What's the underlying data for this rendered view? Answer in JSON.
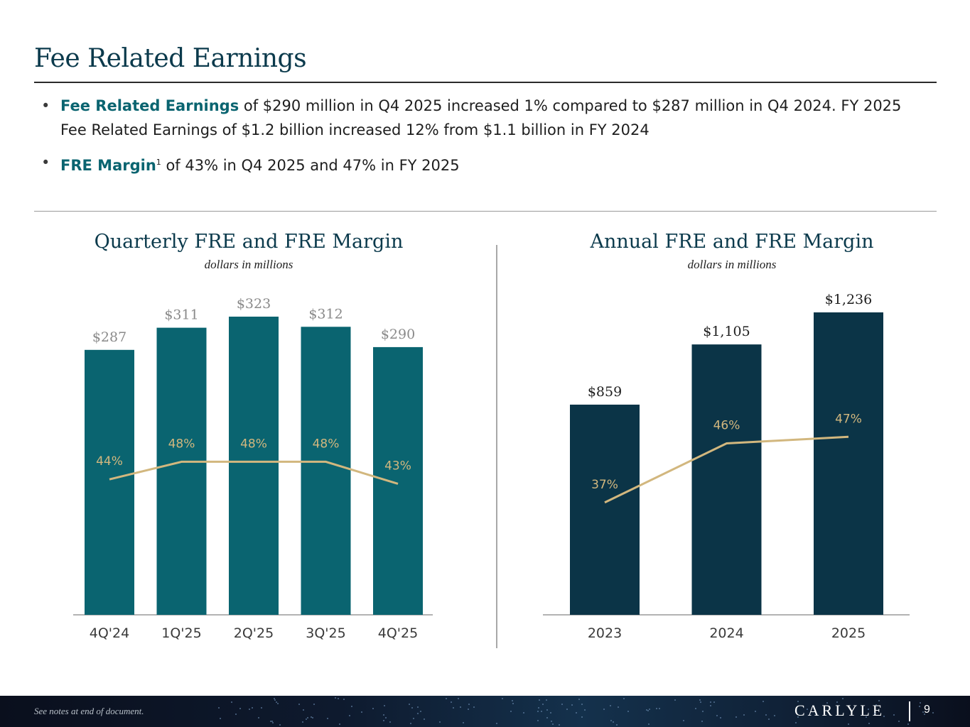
{
  "page_title": "Fee Related Earnings",
  "bullets": [
    {
      "highlight": "Fee Related Earnings",
      "rest": " of $290 million in Q4 2025 increased 1% compared to $287 million in Q4 2024. FY 2025 Fee Related Earnings of $1.2 billion increased 12% from $1.1 billion in FY 2024"
    },
    {
      "highlight": "FRE Margin",
      "sup": "1",
      "rest": " of 43%  in Q4 2025 and 47% in FY 2025"
    }
  ],
  "colors": {
    "title": "#0b3a4c",
    "highlight": "#0a6470",
    "quarter_bar": "#0a6470",
    "annual_bar": "#0b3447",
    "margin_line": "#d2b77e",
    "value_label": "#8a8a8a",
    "annual_value_label": "#1e1e1e",
    "axis_label": "#3a3a3a"
  },
  "chart_data": [
    {
      "type": "bar",
      "title": "Quarterly FRE and FRE Margin",
      "subtitle": "dollars in millions",
      "categories": [
        "4Q'24",
        "1Q'25",
        "2Q'25",
        "3Q'25",
        "4Q'25"
      ],
      "series": [
        {
          "name": "FRE",
          "values": [
            287,
            311,
            323,
            312,
            290
          ],
          "labels": [
            "$287",
            "$311",
            "$323",
            "$312",
            "$290"
          ]
        },
        {
          "name": "FRE Margin",
          "type": "line",
          "values": [
            44,
            48,
            48,
            48,
            43
          ],
          "labels": [
            "44%",
            "48%",
            "48%",
            "48%",
            "43%"
          ]
        }
      ],
      "ylim": [
        0,
        340
      ]
    },
    {
      "type": "bar",
      "title": "Annual FRE and FRE Margin",
      "subtitle": "dollars in millions",
      "categories": [
        "2023",
        "2024",
        "2025"
      ],
      "series": [
        {
          "name": "FRE",
          "values": [
            859,
            1105,
            1236
          ],
          "labels": [
            "$859",
            "$1,105",
            "$1,236"
          ]
        },
        {
          "name": "FRE Margin",
          "type": "line",
          "values": [
            37,
            46,
            47
          ],
          "labels": [
            "37%",
            "46%",
            "47%"
          ]
        }
      ],
      "ylim": [
        0,
        1300
      ]
    }
  ],
  "footer": {
    "note": "See notes at end of document.",
    "logo": "CARLYLE",
    "page_number": "9"
  }
}
